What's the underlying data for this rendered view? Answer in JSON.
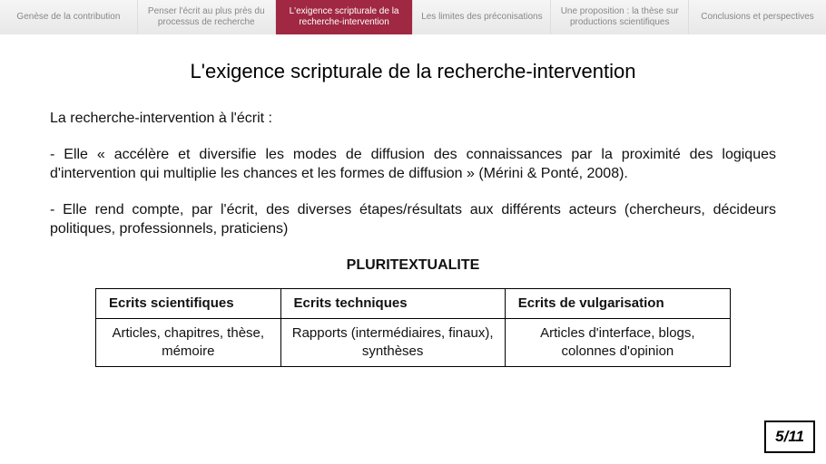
{
  "nav": {
    "tabs": [
      {
        "label": "Genèse de la contribution",
        "active": false
      },
      {
        "label": "Penser l'écrit au plus près du processus de recherche",
        "active": false
      },
      {
        "label": "L'exigence scripturale de la recherche-intervention",
        "active": true
      },
      {
        "label": "Les limites des préconisations",
        "active": false
      },
      {
        "label": "Une proposition : la thèse sur productions scientifiques",
        "active": false
      },
      {
        "label": "Conclusions et perspectives",
        "active": false
      }
    ],
    "active_bg": "#a02842",
    "inactive_color": "#888888"
  },
  "title": "L'exigence scripturale de la recherche-intervention",
  "intro": "La recherche-intervention à l'écrit :",
  "bullets": [
    "- Elle « accélère et diversifie les modes de diffusion des connaissances par la proximité des logiques d'intervention qui multiplie les chances et les formes de diffusion » (Mérini & Ponté, 2008).",
    "- Elle rend compte, par l'écrit, des diverses étapes/résultats aux différents acteurs (chercheurs, décideurs politiques, professionnels, praticiens)"
  ],
  "subheading": "PLURITEXTUALITE",
  "table": {
    "headers": [
      "Ecrits scientifiques",
      "Ecrits techniques",
      "Ecrits de vulgarisation"
    ],
    "row": [
      "Articles, chapitres, thèse, mémoire",
      "Rapports (intermédiaires, finaux), synthèses",
      "Articles d'interface, blogs, colonnes d'opinion"
    ]
  },
  "page_number": "5/11"
}
